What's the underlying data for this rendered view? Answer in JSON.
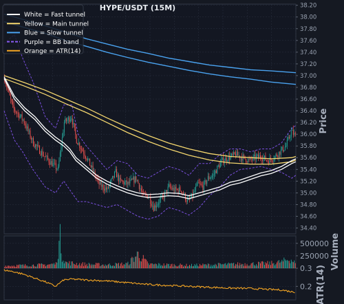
{
  "chart_data": {
    "type": "candlestick",
    "title": "HYPE/USDT (15M)",
    "panels": {
      "price": {
        "ylabel": "Price",
        "ylim": [
          34.3,
          38.22
        ],
        "ticks": [
          "38.20",
          "38.00",
          "37.80",
          "37.60",
          "37.40",
          "37.20",
          "37.00",
          "36.80",
          "36.60",
          "36.40",
          "36.20",
          "36.00",
          "35.80",
          "35.60",
          "35.40",
          "35.20",
          "35.00",
          "34.80",
          "34.60",
          "34.40"
        ]
      },
      "volume": {
        "ylabel": "Volume",
        "ylim": [
          0,
          650000
        ],
        "ticks": [
          "500000",
          "250000"
        ]
      },
      "atr": {
        "ylabel": "ATR(14)",
        "ylim": [
          0.125,
          0.3
        ],
        "ticks": [
          "0.3",
          "0.2"
        ]
      }
    },
    "legend": {
      "placement": "top-left",
      "entries": [
        {
          "label": "White = Fast tunnel",
          "color": "#ffffff",
          "dash": false
        },
        {
          "label": "Yellow = Main tunnel",
          "color": "#f5d76e",
          "dash": false
        },
        {
          "label": "Blue = Slow tunnel",
          "color": "#4aa3f0",
          "dash": false
        },
        {
          "label": "Purple = BB band",
          "color": "#8a5cf6",
          "dash": true
        },
        {
          "label": "Orange = ATR(14)",
          "color": "#f5a623",
          "dash": false
        }
      ]
    },
    "colors": {
      "up": "#26a69a",
      "down": "#ef5350",
      "white": "#ffffff",
      "yellow": "#f5d76e",
      "blue": "#4aa3f0",
      "purple": "#7b4fe0",
      "orange": "#f5a623"
    },
    "grid": true,
    "close_path": [
      [
        0,
        36.95
      ],
      [
        8,
        36.45
      ],
      [
        18,
        36.25
      ],
      [
        28,
        35.85
      ],
      [
        40,
        35.6
      ],
      [
        52,
        35.4
      ],
      [
        58,
        36.2
      ],
      [
        65,
        36.3
      ],
      [
        70,
        35.9
      ],
      [
        80,
        35.6
      ],
      [
        92,
        35.15
      ],
      [
        100,
        35.05
      ],
      [
        108,
        35.35
      ],
      [
        112,
        35.2
      ],
      [
        120,
        35.15
      ],
      [
        128,
        35.25
      ],
      [
        135,
        34.95
      ],
      [
        140,
        34.95
      ],
      [
        145,
        34.75
      ],
      [
        150,
        34.85
      ],
      [
        155,
        34.95
      ],
      [
        160,
        35.1
      ],
      [
        165,
        35.05
      ],
      [
        172,
        35.05
      ],
      [
        178,
        34.85
      ],
      [
        183,
        34.95
      ],
      [
        188,
        35.15
      ],
      [
        193,
        35.1
      ],
      [
        198,
        35.25
      ],
      [
        203,
        35.3
      ],
      [
        208,
        35.45
      ],
      [
        212,
        35.55
      ],
      [
        218,
        35.6
      ],
      [
        225,
        35.65
      ],
      [
        232,
        35.6
      ],
      [
        238,
        35.55
      ],
      [
        244,
        35.6
      ],
      [
        250,
        35.62
      ],
      [
        256,
        35.55
      ],
      [
        262,
        35.6
      ],
      [
        268,
        35.7
      ],
      [
        274,
        35.8
      ],
      [
        279,
        36.05
      ],
      [
        284,
        35.95
      ]
    ],
    "fast_tunnel": [
      [
        [
          0,
          36.98
        ],
        [
          10,
          36.65
        ],
        [
          20,
          36.45
        ],
        [
          30,
          36.3
        ],
        [
          40,
          36.1
        ],
        [
          50,
          35.95
        ],
        [
          58,
          35.85
        ],
        [
          64,
          35.75
        ],
        [
          70,
          35.6
        ],
        [
          80,
          35.45
        ],
        [
          90,
          35.3
        ],
        [
          100,
          35.2
        ],
        [
          110,
          35.12
        ],
        [
          120,
          35.05
        ],
        [
          130,
          35.0
        ],
        [
          140,
          34.97
        ],
        [
          150,
          34.98
        ],
        [
          160,
          35.0
        ],
        [
          170,
          34.99
        ],
        [
          180,
          34.95
        ],
        [
          190,
          35.0
        ],
        [
          200,
          35.05
        ],
        [
          210,
          35.1
        ],
        [
          220,
          35.18
        ],
        [
          230,
          35.22
        ],
        [
          240,
          35.28
        ],
        [
          250,
          35.34
        ],
        [
          260,
          35.38
        ],
        [
          270,
          35.45
        ],
        [
          280,
          35.55
        ],
        [
          284,
          35.58
        ]
      ],
      [
        [
          0,
          36.95
        ],
        [
          10,
          36.6
        ],
        [
          20,
          36.4
        ],
        [
          30,
          36.25
        ],
        [
          40,
          36.05
        ],
        [
          50,
          35.9
        ],
        [
          58,
          35.8
        ],
        [
          64,
          35.7
        ],
        [
          70,
          35.55
        ],
        [
          80,
          35.4
        ],
        [
          90,
          35.25
        ],
        [
          100,
          35.15
        ],
        [
          110,
          35.07
        ],
        [
          120,
          35.0
        ],
        [
          130,
          34.95
        ],
        [
          140,
          34.92
        ],
        [
          150,
          34.93
        ],
        [
          160,
          34.95
        ],
        [
          170,
          34.94
        ],
        [
          180,
          34.9
        ],
        [
          190,
          34.95
        ],
        [
          200,
          35.0
        ],
        [
          210,
          35.05
        ],
        [
          220,
          35.13
        ],
        [
          230,
          35.17
        ],
        [
          240,
          35.23
        ],
        [
          250,
          35.29
        ],
        [
          260,
          35.33
        ],
        [
          270,
          35.4
        ],
        [
          280,
          35.5
        ],
        [
          284,
          35.53
        ]
      ]
    ],
    "main_tunnel": [
      [
        [
          0,
          37.0
        ],
        [
          20,
          36.88
        ],
        [
          40,
          36.75
        ],
        [
          60,
          36.6
        ],
        [
          80,
          36.45
        ],
        [
          100,
          36.28
        ],
        [
          120,
          36.12
        ],
        [
          140,
          35.98
        ],
        [
          160,
          35.85
        ],
        [
          180,
          35.75
        ],
        [
          200,
          35.67
        ],
        [
          220,
          35.62
        ],
        [
          240,
          35.6
        ],
        [
          260,
          35.58
        ],
        [
          280,
          35.6
        ],
        [
          284,
          35.62
        ]
      ],
      [
        [
          0,
          36.95
        ],
        [
          20,
          36.82
        ],
        [
          40,
          36.68
        ],
        [
          60,
          36.52
        ],
        [
          80,
          36.37
        ],
        [
          100,
          36.2
        ],
        [
          120,
          36.03
        ],
        [
          140,
          35.88
        ],
        [
          160,
          35.75
        ],
        [
          180,
          35.64
        ],
        [
          200,
          35.56
        ],
        [
          220,
          35.51
        ],
        [
          240,
          35.49
        ],
        [
          260,
          35.49
        ],
        [
          280,
          35.53
        ],
        [
          284,
          35.56
        ]
      ]
    ],
    "slow_tunnel": [
      [
        [
          0,
          38.05
        ],
        [
          20,
          37.95
        ],
        [
          40,
          37.85
        ],
        [
          60,
          37.74
        ],
        [
          80,
          37.63
        ],
        [
          100,
          37.54
        ],
        [
          120,
          37.45
        ],
        [
          140,
          37.38
        ],
        [
          160,
          37.3
        ],
        [
          180,
          37.24
        ],
        [
          200,
          37.18
        ],
        [
          220,
          37.14
        ],
        [
          240,
          37.1
        ],
        [
          260,
          37.08
        ],
        [
          284,
          37.05
        ]
      ],
      [
        [
          0,
          37.92
        ],
        [
          20,
          37.82
        ],
        [
          40,
          37.72
        ],
        [
          60,
          37.6
        ],
        [
          80,
          37.5
        ],
        [
          100,
          37.4
        ],
        [
          120,
          37.31
        ],
        [
          140,
          37.23
        ],
        [
          160,
          37.16
        ],
        [
          180,
          37.09
        ],
        [
          200,
          37.03
        ],
        [
          220,
          36.98
        ],
        [
          240,
          36.94
        ],
        [
          260,
          36.89
        ],
        [
          284,
          36.85
        ]
      ]
    ],
    "bb_band": [
      [
        [
          0,
          37.55
        ],
        [
          10,
          37.7
        ],
        [
          18,
          37.3
        ],
        [
          28,
          36.9
        ],
        [
          40,
          36.3
        ],
        [
          50,
          36.1
        ],
        [
          58,
          36.5
        ],
        [
          66,
          36.5
        ],
        [
          72,
          36.0
        ],
        [
          80,
          35.8
        ],
        [
          90,
          35.6
        ],
        [
          100,
          35.4
        ],
        [
          110,
          35.55
        ],
        [
          120,
          35.5
        ],
        [
          130,
          35.3
        ],
        [
          140,
          35.25
        ],
        [
          150,
          35.35
        ],
        [
          160,
          35.45
        ],
        [
          170,
          35.4
        ],
        [
          180,
          35.3
        ],
        [
          190,
          35.5
        ],
        [
          200,
          35.5
        ],
        [
          210,
          35.65
        ],
        [
          220,
          35.75
        ],
        [
          230,
          35.75
        ],
        [
          240,
          35.7
        ],
        [
          250,
          35.75
        ],
        [
          260,
          35.75
        ],
        [
          270,
          35.85
        ],
        [
          280,
          36.1
        ],
        [
          284,
          36.15
        ]
      ],
      [
        [
          0,
          36.4
        ],
        [
          10,
          35.9
        ],
        [
          18,
          35.7
        ],
        [
          28,
          35.4
        ],
        [
          40,
          35.1
        ],
        [
          50,
          35.0
        ],
        [
          58,
          35.2
        ],
        [
          66,
          35.0
        ],
        [
          72,
          34.85
        ],
        [
          80,
          34.85
        ],
        [
          90,
          34.8
        ],
        [
          100,
          34.75
        ],
        [
          110,
          34.8
        ],
        [
          120,
          34.7
        ],
        [
          130,
          34.6
        ],
        [
          140,
          34.55
        ],
        [
          150,
          34.6
        ],
        [
          160,
          34.75
        ],
        [
          170,
          34.7
        ],
        [
          180,
          34.62
        ],
        [
          190,
          34.75
        ],
        [
          200,
          34.95
        ],
        [
          210,
          35.1
        ],
        [
          220,
          35.3
        ],
        [
          230,
          35.4
        ],
        [
          240,
          35.42
        ],
        [
          250,
          35.45
        ],
        [
          260,
          35.4
        ],
        [
          270,
          35.35
        ],
        [
          280,
          35.25
        ],
        [
          284,
          35.3
        ]
      ]
    ],
    "atr_path": [
      [
        0,
        0.29
      ],
      [
        10,
        0.28
      ],
      [
        20,
        0.265
      ],
      [
        30,
        0.245
      ],
      [
        40,
        0.225
      ],
      [
        50,
        0.2
      ],
      [
        58,
        0.235
      ],
      [
        66,
        0.24
      ],
      [
        80,
        0.235
      ],
      [
        100,
        0.23
      ],
      [
        120,
        0.22
      ],
      [
        140,
        0.21
      ],
      [
        160,
        0.205
      ],
      [
        180,
        0.2
      ],
      [
        200,
        0.195
      ],
      [
        220,
        0.19
      ],
      [
        240,
        0.188
      ],
      [
        260,
        0.182
      ],
      [
        270,
        0.18
      ],
      [
        280,
        0.17
      ],
      [
        284,
        0.168
      ]
    ],
    "volume_profile": [
      [
        0,
        50000
      ],
      [
        20,
        60000
      ],
      [
        40,
        70000
      ],
      [
        50,
        90000
      ],
      [
        54,
        600000
      ],
      [
        56,
        250000
      ],
      [
        60,
        110000
      ],
      [
        80,
        80000
      ],
      [
        100,
        70000
      ],
      [
        120,
        90000
      ],
      [
        130,
        290000
      ],
      [
        140,
        80000
      ],
      [
        160,
        70000
      ],
      [
        180,
        60000
      ],
      [
        200,
        70000
      ],
      [
        220,
        80000
      ],
      [
        240,
        90000
      ],
      [
        260,
        100000
      ],
      [
        270,
        130000
      ],
      [
        278,
        190000
      ],
      [
        282,
        120000
      ],
      [
        284,
        80000
      ]
    ]
  }
}
